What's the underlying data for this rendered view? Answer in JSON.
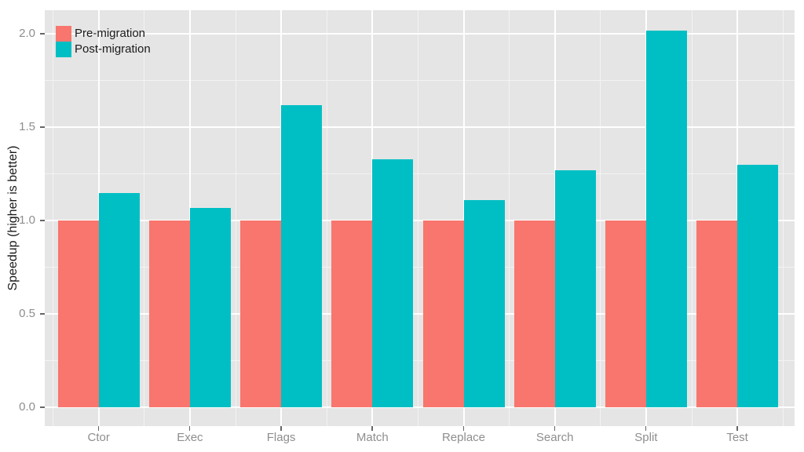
{
  "chart_data": {
    "type": "bar",
    "title": "",
    "categories": [
      "Ctor",
      "Exec",
      "Flags",
      "Match",
      "Replace",
      "Search",
      "Split",
      "Test"
    ],
    "series": [
      {
        "name": "Pre-migration",
        "color": "#F8766D",
        "values": [
          1.0,
          1.0,
          1.0,
          1.0,
          1.0,
          1.0,
          1.0,
          1.0
        ]
      },
      {
        "name": "Post-migration",
        "color": "#00BFC4",
        "values": [
          1.15,
          1.07,
          1.62,
          1.33,
          1.11,
          1.27,
          2.02,
          1.3
        ]
      }
    ],
    "xlabel": "",
    "ylabel": "Speedup (higher is better)",
    "y_ticks": [
      {
        "value": 0.0,
        "label": "0.0"
      },
      {
        "value": 0.5,
        "label": "0.5"
      },
      {
        "value": 1.0,
        "label": "1.0"
      },
      {
        "value": 1.5,
        "label": "1.5"
      },
      {
        "value": 2.0,
        "label": "2.0"
      }
    ],
    "y_minor_ticks": [
      0.25,
      0.75,
      1.25,
      1.75
    ],
    "ylim": [
      -0.1,
      2.14
    ],
    "grid": {
      "major": true,
      "minor": true
    },
    "legend": {
      "position": "inside-top-left",
      "entries": [
        "Pre-migration",
        "Post-migration"
      ]
    }
  },
  "colors": {
    "page_bg": "#FFFFFF",
    "panel_bg": "#E5E5E5",
    "grid_major": "#FFFFFF",
    "grid_minor": "#F3F3F3",
    "tick_mark": "#666666",
    "tick_label": "#8E8E8E",
    "axis_title": "#1A1A1A",
    "legend_text": "#1A1A1A"
  }
}
